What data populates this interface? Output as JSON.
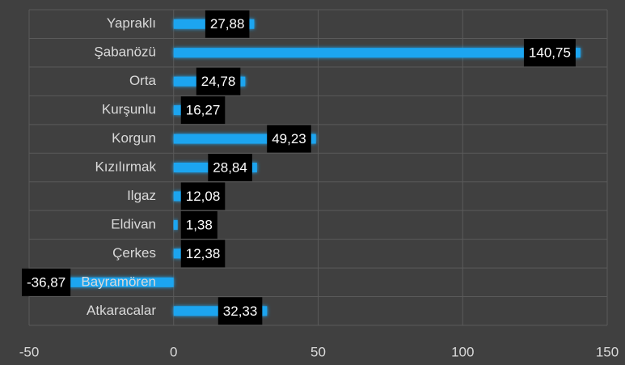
{
  "chart_data": {
    "type": "bar",
    "orientation": "horizontal",
    "categories": [
      "Yapraklı",
      "Şabanözü",
      "Orta",
      "Kurşunlu",
      "Korgun",
      "Kızılırmak",
      "Ilgaz",
      "Eldivan",
      "Çerkes",
      "Bayramören",
      "Atkaracalar"
    ],
    "values": [
      27.88,
      140.75,
      24.78,
      16.27,
      49.23,
      28.84,
      12.08,
      1.38,
      12.38,
      -36.87,
      32.33
    ],
    "value_labels": [
      "27,88",
      "140,75",
      "24,78",
      "16,27",
      "49,23",
      "28,84",
      "12,08",
      "1,38",
      "12,38",
      "-36,87",
      "32,33"
    ],
    "color": "#1ea5f0",
    "xlim": [
      -50,
      150
    ],
    "xticks": [
      -50,
      0,
      50,
      100,
      150
    ],
    "grid": true
  }
}
